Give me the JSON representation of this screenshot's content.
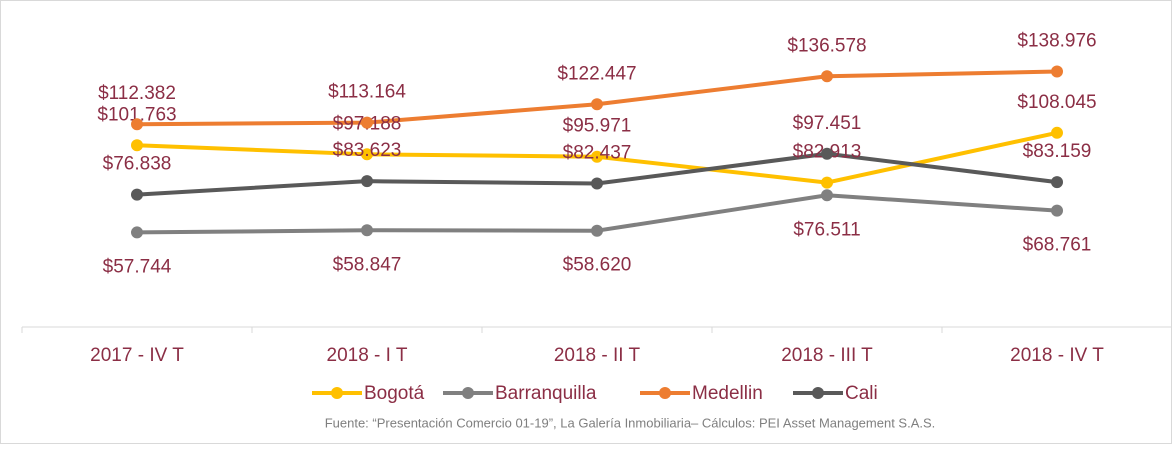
{
  "chart_data": {
    "type": "line",
    "categories": [
      "2017 - IV T",
      "2018 - I T",
      "2018 - II T",
      "2018 - III T",
      "2018 - IV T"
    ],
    "series": [
      {
        "name": "Bogotá",
        "color": "#FFC000",
        "values": [
          101.763,
          97.188,
          95.971,
          82.913,
          108.045
        ],
        "value_labels": [
          "$101.763",
          "$97.188",
          "$95.971",
          "$82.913",
          "$108.045"
        ],
        "label_position": "above"
      },
      {
        "name": "Barranquilla",
        "color": "#808080",
        "values": [
          57.744,
          58.847,
          58.62,
          76.511,
          68.761
        ],
        "value_labels": [
          "$57.744",
          "$58.847",
          "$58.620",
          "$76.511",
          "$68.761"
        ],
        "label_position": "below"
      },
      {
        "name": "Medellin",
        "color": "#ED7D31",
        "values": [
          112.382,
          113.164,
          122.447,
          136.578,
          138.976
        ],
        "value_labels": [
          "$112.382",
          "$113.164",
          "$122.447",
          "$136.578",
          "$138.976"
        ],
        "label_position": "above"
      },
      {
        "name": "Cali",
        "color": "#595959",
        "values": [
          76.838,
          83.623,
          82.437,
          97.451,
          83.159
        ],
        "value_labels": [
          "$76.838",
          "$83.623",
          "$82.437",
          "$97.451",
          "$83.159"
        ],
        "label_position": "above"
      }
    ],
    "ylim": [
      10,
      165
    ],
    "legend": "bottom",
    "source": "Fuente: “Presentación Comercio 01-19”, La Galería Inmobiliaria–  Cálculos: PEI Asset Management S.A.S."
  }
}
